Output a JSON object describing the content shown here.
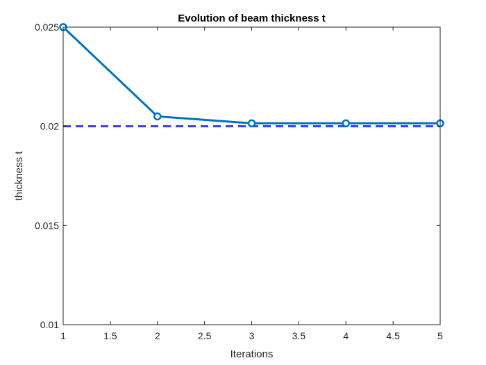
{
  "chart_data": {
    "type": "line",
    "title": "Evolution of beam thickness t",
    "xlabel": "Iterations",
    "ylabel": "thickness t",
    "xlim": [
      1,
      5
    ],
    "ylim": [
      0.01,
      0.025
    ],
    "xticks": [
      "1",
      "1.5",
      "2",
      "2.5",
      "3",
      "3.5",
      "4",
      "4.5",
      "5"
    ],
    "yticks": [
      "0.01",
      "0.015",
      "0.02",
      "0.025"
    ],
    "grid": false,
    "series": [
      {
        "x": [
          1,
          2,
          3,
          4,
          5
        ],
        "values": [
          0.025,
          0.0205,
          0.02015,
          0.02015,
          0.02015
        ],
        "color": "#0072BD",
        "marker": "circle"
      }
    ],
    "reference_line": {
      "y": 0.02,
      "style": "dashed",
      "color": "#3d3de0"
    }
  }
}
